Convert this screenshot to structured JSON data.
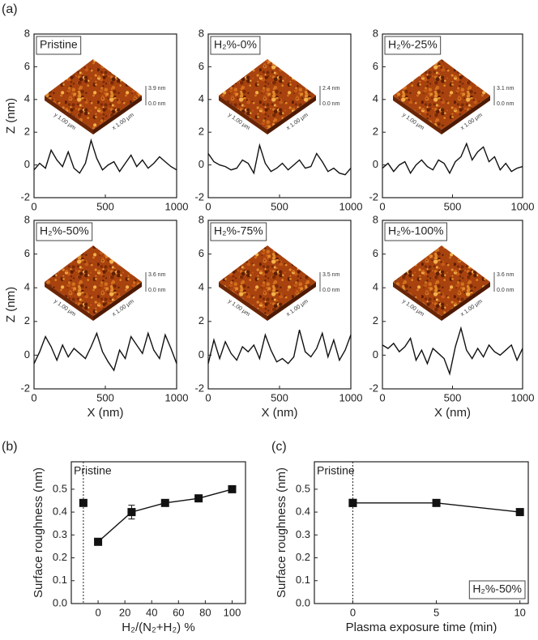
{
  "panel_labels": [
    "(a)",
    "(b)",
    "(c)"
  ],
  "chart_data": [
    {
      "type": "line",
      "label_box": "Pristine",
      "ylabel": "Z (nm)",
      "afm_scale": [
        "3.9 nm",
        "0.0 nm"
      ],
      "afm_axes": [
        "y 1.00 μm",
        "x 1.00 μm"
      ],
      "x": [
        0,
        40,
        80,
        120,
        160,
        200,
        240,
        280,
        320,
        360,
        400,
        440,
        480,
        520,
        560,
        600,
        640,
        680,
        720,
        760,
        800,
        840,
        880,
        920,
        960,
        1000
      ],
      "values": [
        -0.3,
        0.1,
        -0.2,
        0.9,
        0.3,
        -0.1,
        0.8,
        -0.2,
        -0.5,
        0.1,
        1.5,
        0.4,
        -0.3,
        0,
        0.2,
        -0.4,
        0.1,
        0.6,
        -0.1,
        0.3,
        -0.2,
        0.1,
        0.5,
        0.2,
        -0.1,
        -0.3
      ],
      "color": "#111111",
      "xlim": [
        0,
        1000
      ],
      "ylim": [
        -2,
        8
      ],
      "xticks": [
        0,
        500,
        1000
      ],
      "yticks": [
        -2,
        0,
        2,
        4,
        6,
        8
      ]
    },
    {
      "type": "line",
      "label_box": "H₂%-0%",
      "afm_scale": [
        "2.4 nm",
        "0.0 nm"
      ],
      "afm_axes": [
        "y 1.00 μm",
        "x 1.00 μm"
      ],
      "x": [
        0,
        40,
        80,
        120,
        160,
        200,
        240,
        280,
        320,
        360,
        400,
        440,
        480,
        520,
        560,
        600,
        640,
        680,
        720,
        760,
        800,
        840,
        880,
        920,
        960,
        1000
      ],
      "values": [
        0.7,
        0.2,
        0.0,
        -0.1,
        -0.3,
        -0.2,
        0.3,
        0.1,
        -0.5,
        1.2,
        0.1,
        -0.4,
        -0.2,
        0.1,
        -0.3,
        0,
        0.3,
        -0.2,
        -0.1,
        0.7,
        0.2,
        -0.4,
        -0.2,
        -0.5,
        -0.6,
        -0.2
      ],
      "color": "#111111",
      "xlim": [
        0,
        1000
      ],
      "ylim": [
        -2,
        8
      ],
      "xticks": [
        0,
        500,
        1000
      ],
      "yticks": [
        -2,
        0,
        2,
        4,
        6,
        8
      ]
    },
    {
      "type": "line",
      "label_box": "H₂%-25%",
      "afm_scale": [
        "3.1 nm",
        "0.0 nm"
      ],
      "afm_axes": [
        "y 1.00 μm",
        "x 1.00 μm"
      ],
      "x": [
        0,
        40,
        80,
        120,
        160,
        200,
        240,
        280,
        320,
        360,
        400,
        440,
        480,
        520,
        560,
        600,
        640,
        680,
        720,
        760,
        800,
        840,
        880,
        920,
        960,
        1000
      ],
      "values": [
        -0.2,
        0.1,
        -0.4,
        0,
        0.2,
        -0.5,
        0.0,
        0.3,
        -0.1,
        -0.3,
        0.3,
        0.1,
        -0.5,
        0.2,
        0.5,
        1.3,
        0.3,
        0.8,
        1.1,
        0.2,
        0.5,
        -0.3,
        0.1,
        -0.4,
        -0.2,
        -0.1
      ],
      "color": "#111111",
      "xlim": [
        0,
        1000
      ],
      "ylim": [
        -2,
        8
      ],
      "xticks": [
        0,
        500,
        1000
      ],
      "yticks": [
        -2,
        0,
        2,
        4,
        6,
        8
      ]
    },
    {
      "type": "line",
      "label_box": "H₂%-50%",
      "ylabel": "Z (nm)",
      "xlabel": "X (nm)",
      "afm_scale": [
        "3.6 nm",
        "0.0 nm"
      ],
      "afm_axes": [
        "y 1.00 μm",
        "x 1.00 μm"
      ],
      "x": [
        0,
        40,
        80,
        120,
        160,
        200,
        240,
        280,
        320,
        360,
        400,
        440,
        480,
        520,
        560,
        600,
        640,
        680,
        720,
        760,
        800,
        840,
        880,
        920,
        960,
        1000
      ],
      "values": [
        -0.5,
        0.2,
        1.1,
        0.5,
        -0.3,
        0.6,
        -0.1,
        0.4,
        0.1,
        -0.2,
        0.5,
        1.3,
        0.2,
        -0.4,
        -0.9,
        0.3,
        -0.2,
        1.1,
        0.6,
        0.1,
        1.3,
        0.3,
        -0.2,
        1.2,
        0.4,
        -0.5
      ],
      "color": "#111111",
      "xlim": [
        0,
        1000
      ],
      "ylim": [
        -2,
        8
      ],
      "xticks": [
        0,
        500,
        1000
      ],
      "yticks": [
        -2,
        0,
        2,
        4,
        6,
        8
      ]
    },
    {
      "type": "line",
      "label_box": "H₂%-75%",
      "xlabel": "X (nm)",
      "afm_scale": [
        "3.5 nm",
        "0.0 nm"
      ],
      "afm_axes": [
        "y 1.00 μm",
        "x 1.00 μm"
      ],
      "x": [
        0,
        40,
        80,
        120,
        160,
        200,
        240,
        280,
        320,
        360,
        400,
        440,
        480,
        520,
        560,
        600,
        640,
        680,
        720,
        760,
        800,
        840,
        880,
        920,
        960,
        1000
      ],
      "values": [
        -0.5,
        0.9,
        -0.2,
        0.8,
        0.1,
        -0.3,
        0.5,
        0.2,
        0.6,
        -0.2,
        1.2,
        0.3,
        -0.4,
        -0.2,
        -0.5,
        -0.1,
        1.5,
        0.2,
        -0.1,
        0.4,
        1.3,
        -0.1,
        0.9,
        -0.3,
        0.3,
        1.2
      ],
      "color": "#111111",
      "xlim": [
        0,
        1000
      ],
      "ylim": [
        -2,
        8
      ],
      "xticks": [
        0,
        500,
        1000
      ],
      "yticks": [
        -2,
        0,
        2,
        4,
        6,
        8
      ]
    },
    {
      "type": "line",
      "label_box": "H₂%-100%",
      "xlabel": "X (nm)",
      "afm_scale": [
        "3.6 nm",
        "0.0 nm"
      ],
      "afm_axes": [
        "y 1.00 μm",
        "x 1.00 μm"
      ],
      "x": [
        0,
        40,
        80,
        120,
        160,
        200,
        240,
        280,
        320,
        360,
        400,
        440,
        480,
        520,
        560,
        600,
        640,
        680,
        720,
        760,
        800,
        840,
        880,
        920,
        960,
        1000
      ],
      "values": [
        0.6,
        0.4,
        0.7,
        0.2,
        0.5,
        1.0,
        -0.3,
        0.3,
        -0.5,
        0.4,
        0.1,
        -0.2,
        -1.1,
        0.5,
        1.6,
        0.3,
        -0.2,
        0.4,
        -0.1,
        0.6,
        0.2,
        0.0,
        0.3,
        0.6,
        -0.3,
        0.4
      ],
      "color": "#111111",
      "xlim": [
        0,
        1000
      ],
      "ylim": [
        -2,
        8
      ],
      "xticks": [
        0,
        500,
        1000
      ],
      "yticks": [
        -2,
        0,
        2,
        4,
        6,
        8
      ]
    },
    {
      "type": "errorline",
      "annotation": "Pristine",
      "ylabel": "Surface roughness (nm)",
      "xlabel": "H₂/(N₂+H₂) %",
      "x": [
        0,
        25,
        50,
        75,
        100
      ],
      "values": [
        0.27,
        0.4,
        0.44,
        0.46,
        0.5
      ],
      "errors": [
        0.01,
        0.03,
        0.01,
        0.01,
        0.01
      ],
      "pristine": {
        "x": -11,
        "value": 0.44
      },
      "color": "#111111",
      "xlim": [
        -20,
        110
      ],
      "ylim": [
        0,
        0.62
      ],
      "xticks": [
        0,
        20,
        40,
        60,
        80,
        100
      ],
      "yticks": [
        {
          "value": 0,
          "label": "0.0"
        },
        0.1,
        0.2,
        0.3,
        0.4,
        0.5
      ]
    },
    {
      "type": "errorline",
      "annotation": "Pristine",
      "label_box": "H₂%-50%",
      "ylabel": "Surface roughness (nm)",
      "xlabel": "Plasma exposure time (min)",
      "x": [
        0,
        5,
        10
      ],
      "values": [
        0.44,
        0.44,
        0.4
      ],
      "pristine": {
        "x": 0,
        "value": 0.44
      },
      "color": "#111111",
      "xlim": [
        -2.3,
        10.5
      ],
      "ylim": [
        0,
        0.62
      ],
      "xticks": [
        0,
        5,
        10
      ],
      "yticks": [
        {
          "value": 0,
          "label": "0.0"
        },
        0.1,
        0.2,
        0.3,
        0.4,
        0.5
      ]
    }
  ]
}
